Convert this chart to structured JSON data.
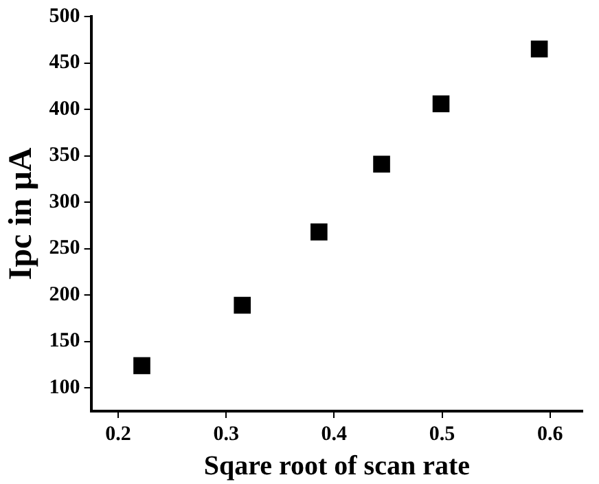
{
  "chart_data": {
    "type": "scatter",
    "xlabel": "Sqare root of scan rate",
    "ylabel": "Ipc in μA",
    "x": [
      0.222,
      0.315,
      0.386,
      0.444,
      0.499,
      0.59
    ],
    "values": [
      124,
      189,
      268,
      341,
      406,
      465
    ],
    "color": "#000000",
    "marker": "square",
    "grid": false,
    "legend": false,
    "xlim": [
      0.175,
      0.63
    ],
    "xticks": [
      0.2,
      0.3,
      0.4,
      0.5,
      0.6
    ],
    "ylim": [
      75,
      500
    ],
    "yticks": [
      100,
      150,
      200,
      250,
      300,
      350,
      400,
      450,
      500
    ]
  }
}
